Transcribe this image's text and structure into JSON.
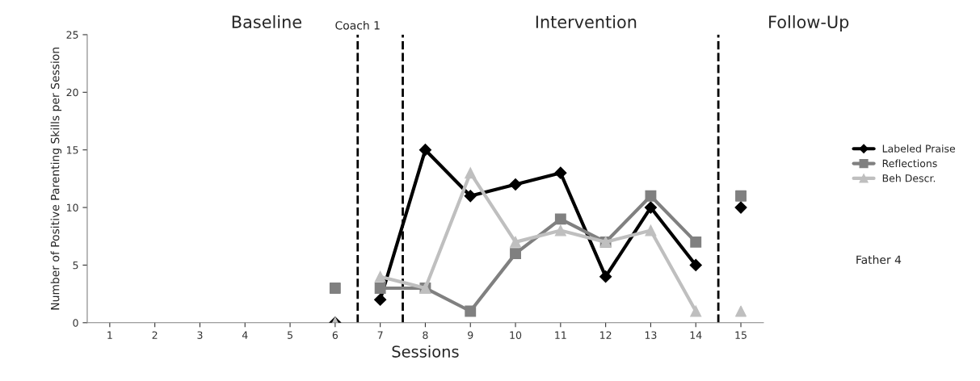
{
  "chart_data": {
    "type": "line",
    "xlabel": "Sessions",
    "ylabel": "Number of Positive Parenting Skills per Session",
    "x": [
      6,
      7,
      8,
      9,
      10,
      11,
      12,
      13,
      14,
      15
    ],
    "xlim": [
      0.5,
      15.5
    ],
    "xticks": [
      1,
      2,
      3,
      4,
      5,
      6,
      7,
      8,
      9,
      10,
      11,
      12,
      13,
      14,
      15
    ],
    "ylim": [
      0,
      25
    ],
    "yticks": [
      0,
      5,
      10,
      15,
      20,
      25
    ],
    "series": [
      {
        "name": "Labeled Praise",
        "color": "#000000",
        "marker": "diamond",
        "values": [
          null,
          2,
          15,
          11,
          12,
          13,
          4,
          10,
          5,
          null
        ]
      },
      {
        "name": "Reflections",
        "color": "#808080",
        "marker": "square",
        "values": [
          null,
          3,
          3,
          1,
          6,
          9,
          7,
          11,
          7,
          null
        ]
      },
      {
        "name": "Beh Descr.",
        "color": "#bfbfbf",
        "marker": "triangle",
        "values": [
          null,
          4,
          3,
          13,
          7,
          8,
          7,
          8,
          1,
          null
        ]
      },
      {
        "type": "scatter",
        "color": "#808080",
        "marker": "square",
        "values": [
          3,
          null,
          null,
          null,
          null,
          null,
          null,
          null,
          null,
          11
        ]
      },
      {
        "type": "scatter",
        "color": "#000000",
        "marker": "diamond",
        "values": [
          0,
          null,
          null,
          null,
          null,
          null,
          null,
          null,
          null,
          10
        ]
      },
      {
        "type": "scatter",
        "color": "#bfbfbf",
        "marker": "triangle",
        "values": [
          0,
          null,
          null,
          null,
          null,
          null,
          null,
          null,
          null,
          1
        ]
      }
    ],
    "ref_lines": [
      {
        "axis": "x",
        "value": 6.5,
        "label": "Coach 1",
        "color": "#000000",
        "line_style": "dashed"
      },
      {
        "axis": "x",
        "value": 7.5,
        "color": "#000000",
        "line_style": "dashed"
      },
      {
        "axis": "x",
        "value": 14.5,
        "color": "#000000",
        "line_style": "dashed"
      }
    ],
    "annotations": [
      "Baseline",
      "Intervention",
      "Follow-Up",
      "Father 4"
    ],
    "grid": false,
    "legend": "right"
  }
}
